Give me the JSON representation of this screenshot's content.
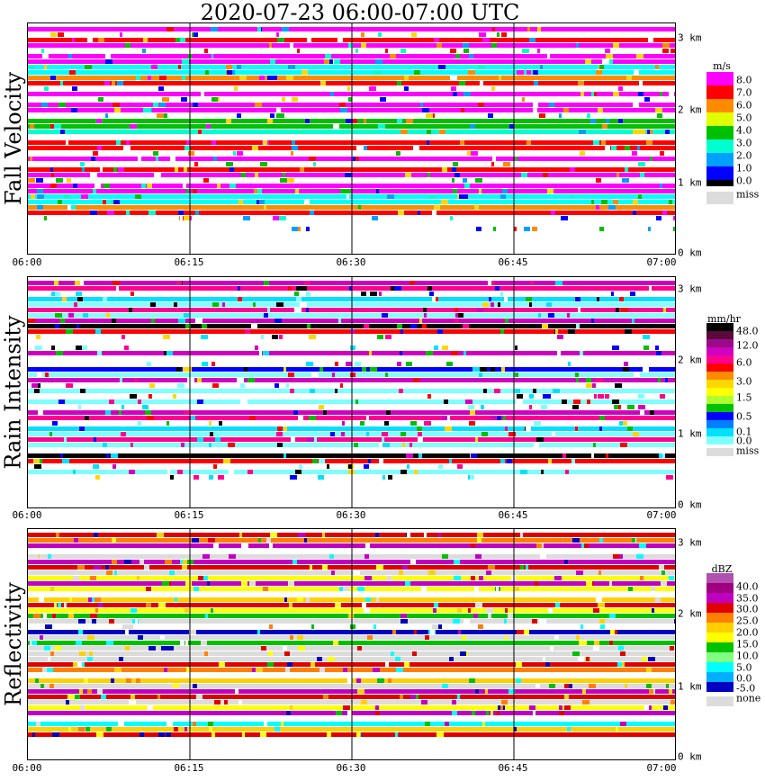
{
  "title": "2020-07-23   06:00-07:00 UTC",
  "colors": {
    "missing": "#dcdcdc",
    "background": "#ffffff",
    "axis": "#000000"
  },
  "chart_data": [
    {
      "type": "heatmap",
      "title": "",
      "ylabel": "Fall Velocity",
      "xlabel": "",
      "x_ticks": [
        "06:00",
        "06:15",
        "06:30",
        "06:45",
        "07:00"
      ],
      "y_ticks": [
        "0 km",
        "1 km",
        "2 km",
        "3 km"
      ],
      "ylim_km": [
        0,
        3.2
      ],
      "colorbar": {
        "unit": "m/s",
        "labels": [
          "8.0",
          "7.0",
          "6.0",
          "5.0",
          "4.0",
          "3.0",
          "2.0",
          "1.0",
          "0.0",
          "miss"
        ],
        "colors": [
          "#ff00ff",
          "#ff0000",
          "#ff8c00",
          "#ffd700",
          "#adff2f",
          "#00c000",
          "#00ffd0",
          "#00a0ff",
          "#0000ff",
          "#dcdcdc"
        ]
      }
    },
    {
      "type": "heatmap",
      "title": "",
      "ylabel": "Rain Intensity",
      "xlabel": "",
      "x_ticks": [
        "06:00",
        "06:15",
        "06:30",
        "06:45",
        "07:00"
      ],
      "y_ticks": [
        "0 km",
        "1 km",
        "2 km",
        "3 km"
      ],
      "ylim_km": [
        0,
        3.2
      ],
      "colorbar": {
        "unit": "mm/hr",
        "labels": [
          "48.0",
          "12.0",
          "6.0",
          "3.0",
          "1.5",
          "0.5",
          "0.1",
          "0.0",
          "miss"
        ],
        "colors": [
          "#000000",
          "#5a0a3a",
          "#9a0a8a",
          "#d000c0",
          "#ff0090",
          "#ff0000",
          "#ff8c00",
          "#ffd700",
          "#ffff00",
          "#adff2f",
          "#00c000",
          "#0000ff",
          "#0080ff",
          "#00e0ff",
          "#80ffff",
          "#dcdcdc"
        ]
      }
    },
    {
      "type": "heatmap",
      "title": "",
      "ylabel": "Reflectivity",
      "xlabel": "",
      "x_ticks": [
        "06:00",
        "06:15",
        "06:30",
        "06:45",
        "07:00"
      ],
      "y_ticks": [
        "0 km",
        "1 km",
        "2 km",
        "3 km"
      ],
      "ylim_km": [
        0,
        3.2
      ],
      "colorbar": {
        "unit": "dBZ",
        "labels": [
          "40.0",
          "35.0",
          "30.0",
          "25.0",
          "20.0",
          "15.0",
          "10.0",
          "5.0",
          "0.0",
          "-5.0",
          "none"
        ],
        "colors": [
          "#b050b0",
          "#a00080",
          "#c000c0",
          "#e00000",
          "#ff8000",
          "#ffd000",
          "#ffff00",
          "#00c000",
          "#80ff80",
          "#00ffff",
          "#00b0ff",
          "#0000c0",
          "#dcdcdc"
        ]
      }
    }
  ]
}
